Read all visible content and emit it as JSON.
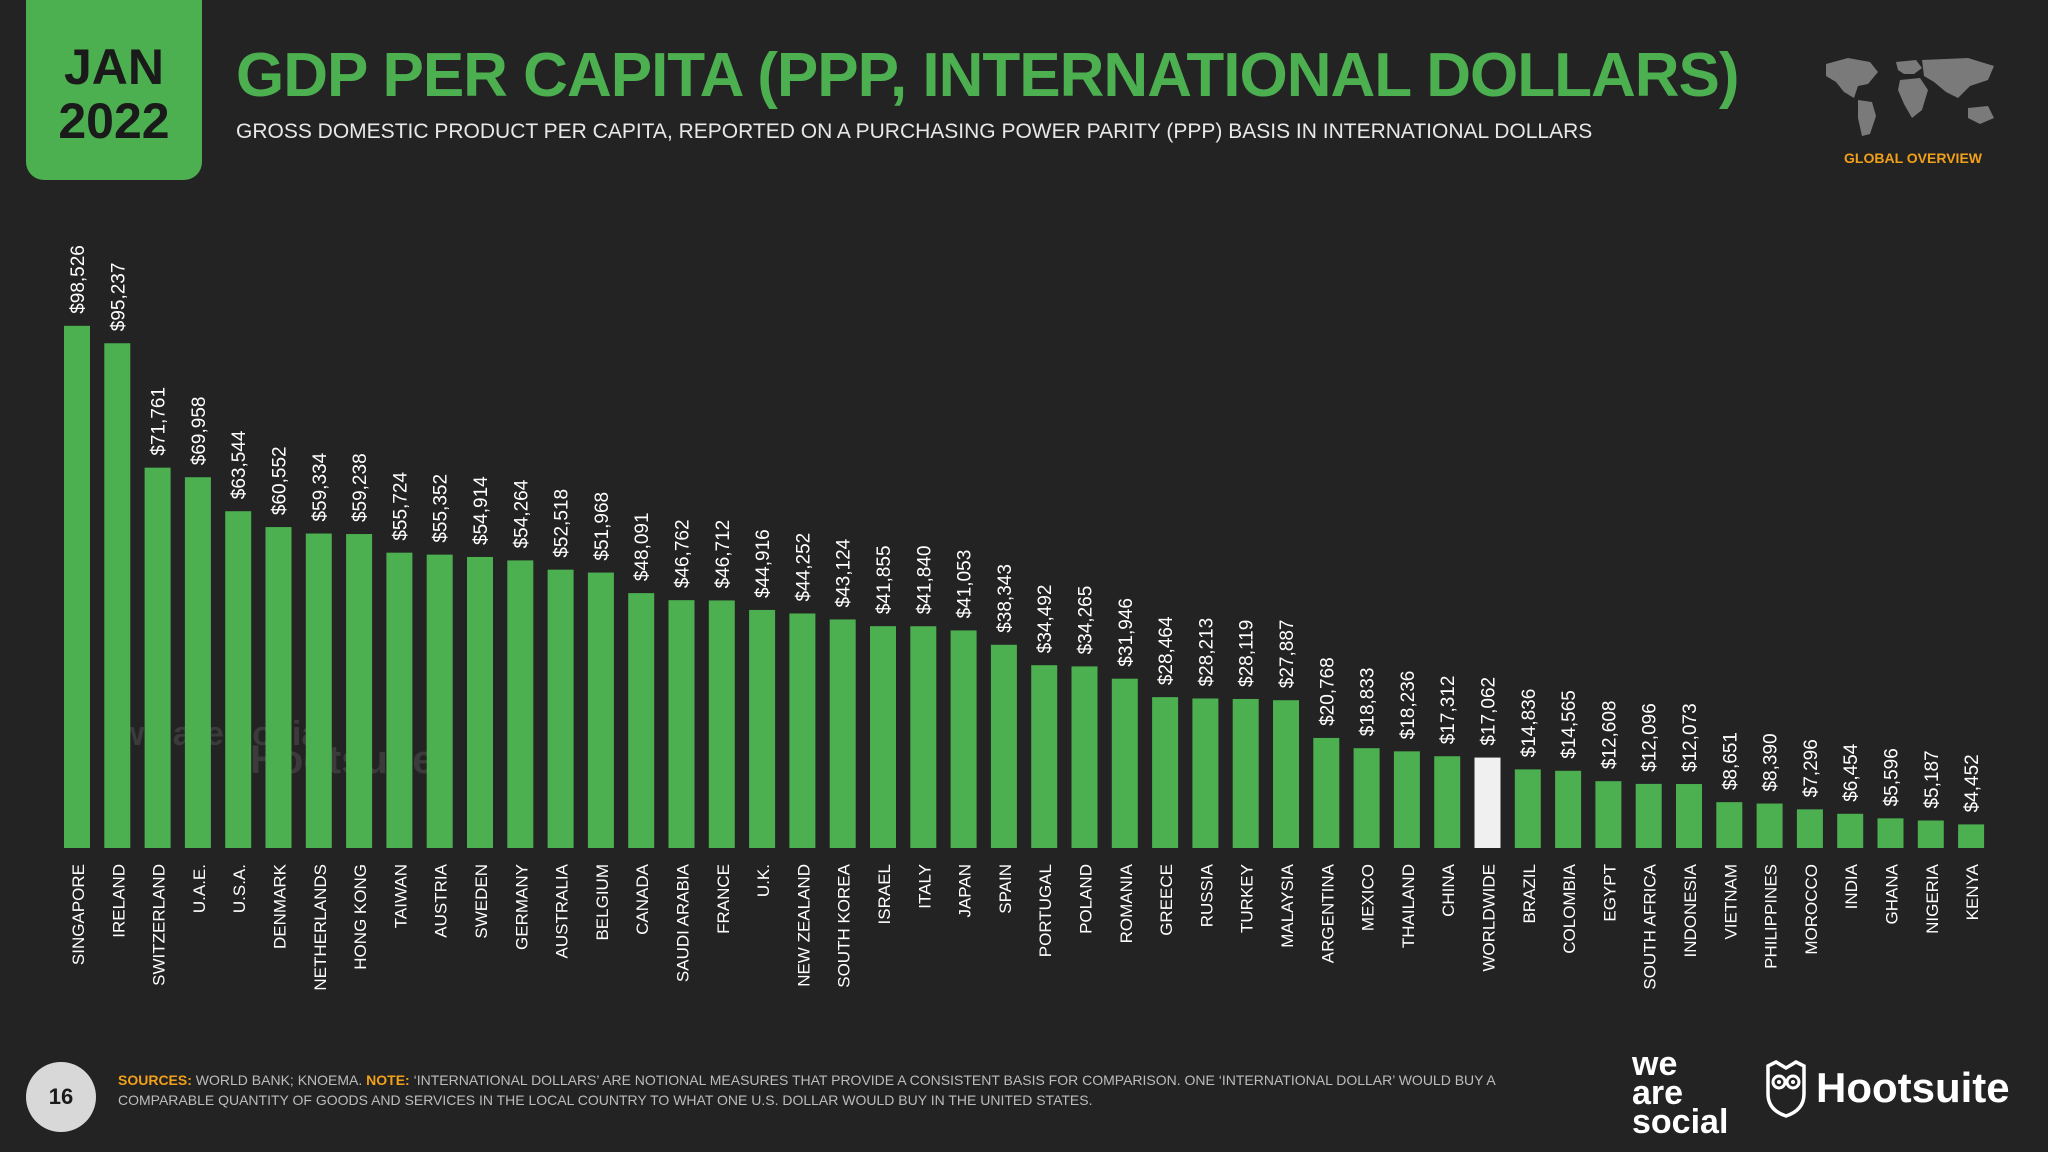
{
  "header": {
    "month": "JAN",
    "year": "2022",
    "title": "GDP PER CAPITA (PPP, INTERNATIONAL DOLLARS)",
    "subtitle": "GROSS DOMESTIC PRODUCT PER CAPITA, REPORTED ON A PURCHASING POWER PARITY (PPP) BASIS IN INTERNATIONAL DOLLARS",
    "section": "GLOBAL OVERVIEW"
  },
  "footer": {
    "page": "16",
    "sources_label": "SOURCES:",
    "sources_text": "WORLD BANK; KNOEMA.",
    "note_label": "NOTE:",
    "note_text": "‘INTERNATIONAL DOLLARS’ ARE NOTIONAL MEASURES THAT PROVIDE A CONSISTENT BASIS FOR COMPARISON. ONE ‘INTERNATIONAL DOLLAR’ WOULD BUY A COMPARABLE QUANTITY OF GOODS AND SERVICES IN THE LOCAL COUNTRY TO WHAT ONE U.S. DOLLAR WOULD BUY IN THE UNITED STATES.",
    "logo_we_1": "we",
    "logo_we_2": "are",
    "logo_we_3": "social",
    "logo_hootsuite": "Hootsuite"
  },
  "watermark": {
    "we": "we are social",
    "hootsuite": "Hootsuite"
  },
  "colors": {
    "bar": "#4caf50",
    "highlight": "#f0f0f0",
    "accent": "#f2a019",
    "background": "#232323"
  },
  "chart_data": {
    "type": "bar",
    "highlight_category": "WORLDWIDE",
    "categories": [
      "SINGAPORE",
      "IRELAND",
      "SWITZERLAND",
      "U.A.E.",
      "U.S.A.",
      "DENMARK",
      "NETHERLANDS",
      "HONG KONG",
      "TAIWAN",
      "AUSTRIA",
      "SWEDEN",
      "GERMANY",
      "AUSTRALIA",
      "BELGIUM",
      "CANADA",
      "SAUDI ARABIA",
      "FRANCE",
      "U.K.",
      "NEW ZEALAND",
      "SOUTH KOREA",
      "ISRAEL",
      "ITALY",
      "JAPAN",
      "SPAIN",
      "PORTUGAL",
      "POLAND",
      "ROMANIA",
      "GREECE",
      "RUSSIA",
      "TURKEY",
      "MALAYSIA",
      "ARGENTINA",
      "MEXICO",
      "THAILAND",
      "CHINA",
      "WORLDWIDE",
      "BRAZIL",
      "COLOMBIA",
      "EGYPT",
      "SOUTH AFRICA",
      "INDONESIA",
      "VIETNAM",
      "PHILIPPINES",
      "MOROCCO",
      "INDIA",
      "GHANA",
      "NIGERIA",
      "KENYA"
    ],
    "values": [
      98526,
      95237,
      71761,
      69958,
      63544,
      60552,
      59334,
      59238,
      55724,
      55352,
      54914,
      54264,
      52518,
      51968,
      48091,
      46762,
      46712,
      44916,
      44252,
      43124,
      41855,
      41840,
      41053,
      38343,
      34492,
      34265,
      31946,
      28464,
      28213,
      28119,
      27887,
      20768,
      18833,
      18236,
      17312,
      17062,
      14836,
      14565,
      12608,
      12096,
      12073,
      8651,
      8390,
      7296,
      6454,
      5596,
      5187,
      4452
    ],
    "labels": [
      "$98,526",
      "$95,237",
      "$71,761",
      "$69,958",
      "$63,544",
      "$60,552",
      "$59,334",
      "$59,238",
      "$55,724",
      "$55,352",
      "$54,914",
      "$54,264",
      "$52,518",
      "$51,968",
      "$48,091",
      "$46,762",
      "$46,712",
      "$44,916",
      "$44,252",
      "$43,124",
      "$41,855",
      "$41,840",
      "$41,053",
      "$38,343",
      "$34,492",
      "$34,265",
      "$31,946",
      "$28,464",
      "$28,213",
      "$28,119",
      "$27,887",
      "$20,768",
      "$18,833",
      "$18,236",
      "$17,312",
      "$17,062",
      "$14,836",
      "$14,565",
      "$12,608",
      "$12,096",
      "$12,073",
      "$8,651",
      "$8,390",
      "$7,296",
      "$6,454",
      "$5,596",
      "$5,187",
      "$4,452"
    ],
    "ylim": [
      0,
      100000
    ]
  }
}
